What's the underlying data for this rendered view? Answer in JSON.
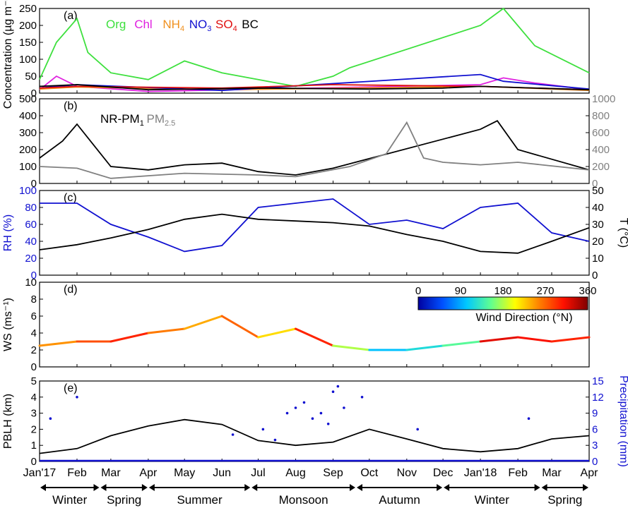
{
  "chart_data": [
    {
      "type": "line",
      "panel_label": "(a)",
      "ylabel": "Concentration (µg m⁻³)",
      "ylim": [
        0,
        250
      ],
      "yticks": [
        0,
        50,
        100,
        150,
        200,
        250
      ],
      "legend_placement": "top",
      "series": [
        {
          "name": "Org",
          "color": "#3ee03e",
          "x": [
            "2017-01-01",
            "2017-01-15",
            "2017-02-01",
            "2017-02-10",
            "2017-03-01",
            "2017-04-01",
            "2017-05-01",
            "2017-06-01",
            "2017-07-01",
            "2017-08-01",
            "2017-09-01",
            "2017-09-15",
            "2018-01-01",
            "2018-01-20",
            "2018-02-15",
            "2018-04-01"
          ],
          "values": [
            40,
            150,
            220,
            120,
            60,
            40,
            95,
            60,
            40,
            20,
            50,
            75,
            200,
            250,
            140,
            60
          ]
        },
        {
          "name": "Chl",
          "color": "#e020e0",
          "x": [
            "2017-01-01",
            "2017-01-15",
            "2017-02-01",
            "2017-04-01",
            "2018-01-01",
            "2018-01-20",
            "2018-02-15",
            "2018-04-01"
          ],
          "values": [
            10,
            50,
            20,
            5,
            25,
            45,
            30,
            10
          ]
        },
        {
          "name": "NH4",
          "sup": "",
          "sub": "4",
          "color": "#f0901e",
          "x": [
            "2017-01-01",
            "2017-02-01",
            "2017-06-01",
            "2018-01-01",
            "2018-04-01"
          ],
          "values": [
            12,
            18,
            10,
            20,
            8
          ]
        },
        {
          "name": "NO3",
          "sub": "3",
          "color": "#1010d0",
          "x": [
            "2017-01-01",
            "2017-02-01",
            "2017-06-01",
            "2018-01-01",
            "2018-01-20",
            "2018-04-01"
          ],
          "values": [
            15,
            25,
            8,
            55,
            35,
            12
          ]
        },
        {
          "name": "SO4",
          "sub": "4",
          "color": "#e01010",
          "x": [
            "2017-01-01",
            "2017-02-01",
            "2017-06-01",
            "2017-09-01",
            "2018-01-01",
            "2018-04-01"
          ],
          "values": [
            15,
            20,
            15,
            25,
            20,
            10
          ]
        },
        {
          "name": "BC",
          "color": "#000000",
          "x": [
            "2017-01-01",
            "2017-02-01",
            "2017-04-01",
            "2017-07-01",
            "2017-10-01",
            "2017-12-01",
            "2018-01-01",
            "2018-04-01"
          ],
          "values": [
            20,
            25,
            10,
            15,
            12,
            15,
            20,
            10
          ]
        }
      ],
      "legend": [
        {
          "text": "Org",
          "sub": "",
          "color": "#3ee03e"
        },
        {
          "text": "Chl",
          "sub": "",
          "color": "#e020e0"
        },
        {
          "text": "NH",
          "sub": "4",
          "color": "#f0901e"
        },
        {
          "text": "NO",
          "sub": "3",
          "color": "#1010d0"
        },
        {
          "text": "SO",
          "sub": "4",
          "color": "#e01010"
        },
        {
          "text": "BC",
          "sub": "",
          "color": "#000000"
        }
      ]
    },
    {
      "type": "line",
      "panel_label": "(b)",
      "ylabel": "",
      "ylim": [
        0,
        500
      ],
      "yticks": [
        0,
        100,
        200,
        300,
        400,
        500
      ],
      "y2lim": [
        0,
        1000
      ],
      "y2ticks": [
        0,
        200,
        400,
        600,
        800,
        1000
      ],
      "series": [
        {
          "name": "NR-PM1",
          "axis": "left",
          "color": "#000000",
          "x": [
            "2017-01-01",
            "2017-01-20",
            "2017-02-01",
            "2017-03-01",
            "2017-04-01",
            "2017-05-01",
            "2017-06-01",
            "2017-07-01",
            "2017-08-01",
            "2017-09-01",
            "2018-01-01",
            "2018-01-15",
            "2018-02-01",
            "2018-04-01"
          ],
          "values": [
            150,
            250,
            350,
            100,
            80,
            110,
            120,
            70,
            50,
            90,
            320,
            370,
            200,
            80
          ]
        },
        {
          "name": "PM2.5",
          "axis": "right",
          "color": "#808080",
          "x": [
            "2017-01-01",
            "2017-02-01",
            "2017-03-01",
            "2017-05-01",
            "2017-07-01",
            "2017-08-01",
            "2017-09-15",
            "2017-10-15",
            "2017-11-01",
            "2017-11-15",
            "2017-12-01",
            "2018-01-01",
            "2018-02-01",
            "2018-04-01"
          ],
          "values": [
            200,
            180,
            60,
            120,
            100,
            80,
            200,
            350,
            720,
            300,
            250,
            220,
            250,
            160
          ]
        }
      ],
      "legend": [
        {
          "text": "NR-PM",
          "sub": "1",
          "color": "#000000"
        },
        {
          "text": "PM",
          "sub": "2.5",
          "color": "#808080"
        }
      ]
    },
    {
      "type": "line",
      "panel_label": "(c)",
      "ylabel": "RH (%)",
      "ylim": [
        0,
        100
      ],
      "yticks": [
        0,
        20,
        40,
        60,
        80,
        100
      ],
      "y2label": "T (°C)",
      "y2lim": [
        0,
        50
      ],
      "y2ticks": [
        0,
        10,
        20,
        30,
        40,
        50
      ],
      "series": [
        {
          "name": "RH",
          "axis": "left",
          "color": "#1010d0",
          "x": [
            "2017-01-01",
            "2017-02-01",
            "2017-03-01",
            "2017-04-01",
            "2017-05-01",
            "2017-06-01",
            "2017-07-01",
            "2017-08-01",
            "2017-09-01",
            "2017-10-01",
            "2017-11-01",
            "2017-12-01",
            "2018-01-01",
            "2018-02-01",
            "2018-03-01",
            "2018-04-01"
          ],
          "values": [
            85,
            85,
            60,
            45,
            28,
            35,
            80,
            85,
            90,
            60,
            65,
            55,
            80,
            85,
            50,
            40
          ]
        },
        {
          "name": "T",
          "axis": "right",
          "color": "#000000",
          "x": [
            "2017-01-01",
            "2017-02-01",
            "2017-03-01",
            "2017-04-01",
            "2017-05-01",
            "2017-06-01",
            "2017-07-01",
            "2017-08-01",
            "2017-09-01",
            "2017-10-01",
            "2017-11-01",
            "2017-12-01",
            "2018-01-01",
            "2018-02-01",
            "2018-03-01",
            "2018-04-01"
          ],
          "values": [
            15,
            18,
            22,
            27,
            33,
            36,
            33,
            32,
            31,
            29,
            24,
            20,
            14,
            13,
            20,
            28
          ]
        }
      ]
    },
    {
      "type": "line",
      "panel_label": "(d)",
      "ylabel": "WS (ms⁻¹)",
      "ylim": [
        0,
        10
      ],
      "yticks": [
        0,
        2,
        4,
        6,
        8,
        10
      ],
      "colorbar": {
        "label": "Wind Direction (°N)",
        "ticks": [
          0,
          90,
          180,
          270,
          360
        ],
        "colors": [
          "#0000a0",
          "#0050ff",
          "#00c8ff",
          "#60ff90",
          "#ffff00",
          "#ff8000",
          "#ff1000",
          "#800000"
        ]
      },
      "series": [
        {
          "name": "WS",
          "x": [
            "2017-01-01",
            "2017-02-01",
            "2017-03-01",
            "2017-04-01",
            "2017-05-01",
            "2017-06-01",
            "2017-07-01",
            "2017-08-01",
            "2017-09-01",
            "2017-10-01",
            "2017-11-01",
            "2017-12-01",
            "2018-01-01",
            "2018-02-01",
            "2018-03-01",
            "2018-04-01"
          ],
          "values": [
            2.5,
            3,
            3,
            4,
            4.5,
            6,
            3.5,
            4.5,
            2.5,
            2,
            2,
            2.5,
            3,
            3.5,
            3,
            3.5
          ],
          "direction": [
            250,
            280,
            300,
            260,
            240,
            270,
            220,
            300,
            180,
            100,
            120,
            150,
            320,
            310,
            300,
            290
          ]
        }
      ]
    },
    {
      "type": "line",
      "panel_label": "(e)",
      "ylabel": "PBLH (km)",
      "ylim": [
        0,
        5
      ],
      "yticks": [
        0,
        1,
        2,
        3,
        4,
        5
      ],
      "y2label": "Precipitation (mm)",
      "y2lim": [
        0,
        15
      ],
      "y2ticks": [
        0,
        3,
        6,
        9,
        12,
        15
      ],
      "series": [
        {
          "name": "PBLH",
          "axis": "left",
          "color": "#000000",
          "x": [
            "2017-01-01",
            "2017-02-01",
            "2017-03-01",
            "2017-04-01",
            "2017-05-01",
            "2017-06-01",
            "2017-07-01",
            "2017-08-01",
            "2017-09-01",
            "2017-10-01",
            "2017-11-01",
            "2017-12-01",
            "2018-01-01",
            "2018-02-01",
            "2018-03-01",
            "2018-04-01"
          ],
          "values": [
            0.5,
            0.8,
            1.6,
            2.2,
            2.6,
            2.3,
            1.3,
            1.0,
            1.2,
            2.0,
            1.4,
            0.8,
            0.6,
            0.8,
            1.4,
            1.6
          ]
        },
        {
          "name": "Precipitation",
          "axis": "right",
          "color": "#1010d0",
          "type": "scatter",
          "x": [
            "2017-01-10",
            "2017-02-01",
            "2017-06-10",
            "2017-07-05",
            "2017-07-15",
            "2017-07-25",
            "2017-08-01",
            "2017-08-08",
            "2017-08-15",
            "2017-08-22",
            "2017-08-28",
            "2017-09-01",
            "2017-09-05",
            "2017-09-10",
            "2017-09-25",
            "2017-11-10",
            "2018-02-10"
          ],
          "values": [
            8,
            12,
            5,
            6,
            4,
            9,
            10,
            11,
            8,
            9,
            7,
            13,
            14,
            10,
            12,
            6,
            8
          ]
        }
      ]
    }
  ],
  "x_axis": {
    "ticks": [
      "Jan'17",
      "Feb",
      "Mar",
      "Apr",
      "May",
      "Jun",
      "Jul",
      "Aug",
      "Sep",
      "Oct",
      "Nov",
      "Dec",
      "Jan'18",
      "Feb",
      "Mar",
      "Apr"
    ],
    "range": [
      "2017-01-01",
      "2018-04-01"
    ]
  },
  "seasons": [
    "Winter",
    "Spring",
    "Summer",
    "Monsoon",
    "Autumn",
    "Winter",
    "Spring"
  ]
}
